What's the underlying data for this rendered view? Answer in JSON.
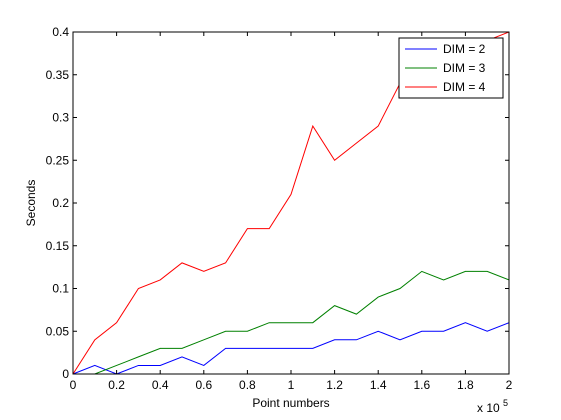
{
  "chart_data": {
    "type": "line",
    "title": "",
    "xlabel": "Point numbers",
    "ylabel": "Seconds",
    "x_multiplier_label": "x 10",
    "x_multiplier_exponent": "5",
    "xlim": [
      0,
      2
    ],
    "ylim": [
      0,
      0.4
    ],
    "xticks": [
      "0",
      "0.2",
      "0.4",
      "0.6",
      "0.8",
      "1",
      "1.2",
      "1.4",
      "1.6",
      "1.8",
      "2"
    ],
    "yticks": [
      "0",
      "0.05",
      "0.1",
      "0.15",
      "0.2",
      "0.25",
      "0.3",
      "0.35",
      "0.4"
    ],
    "x": [
      0,
      0.1,
      0.2,
      0.3,
      0.4,
      0.5,
      0.6,
      0.7,
      0.8,
      0.9,
      1.0,
      1.1,
      1.2,
      1.3,
      1.4,
      1.5,
      1.6,
      1.7,
      1.8,
      1.9,
      2.0
    ],
    "series": [
      {
        "name": "DIM = 2",
        "color": "#0000ff",
        "values": [
          0,
          0.01,
          0,
          0.01,
          0.01,
          0.02,
          0.01,
          0.03,
          0.03,
          0.03,
          0.03,
          0.03,
          0.04,
          0.04,
          0.05,
          0.04,
          0.05,
          0.05,
          0.06,
          0.05,
          0.06
        ]
      },
      {
        "name": "DIM = 3",
        "color": "#008000",
        "values": [
          0,
          0,
          0.01,
          0.02,
          0.03,
          0.03,
          0.04,
          0.05,
          0.05,
          0.06,
          0.06,
          0.06,
          0.08,
          0.07,
          0.09,
          0.1,
          0.12,
          0.11,
          0.12,
          0.12,
          0.11
        ]
      },
      {
        "name": "DIM = 4",
        "color": "#ff0000",
        "values": [
          0,
          0.04,
          0.06,
          0.1,
          0.11,
          0.13,
          0.12,
          0.13,
          0.17,
          0.17,
          0.21,
          0.29,
          0.25,
          0.27,
          0.29,
          0.34,
          0.36,
          0.37,
          0.38,
          0.39,
          0.4
        ]
      }
    ],
    "grid": false,
    "legend_position": "top-right"
  }
}
